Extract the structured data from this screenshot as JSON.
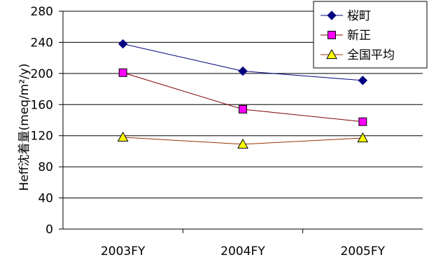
{
  "chart_data": {
    "type": "line",
    "categories": [
      "2003FY",
      "2004FY",
      "2005FY"
    ],
    "ylabel": "Heff沈着量(meq/m²/y)",
    "ylim": [
      0,
      280
    ],
    "yticks": [
      0,
      40,
      80,
      120,
      160,
      200,
      240,
      280
    ],
    "grid": true,
    "legend_position": "top-right",
    "series": [
      {
        "name": "桜町",
        "values": [
          238,
          203,
          191
        ],
        "color": "#000080",
        "marker": "diamond",
        "line_color": "#000080"
      },
      {
        "name": "新正",
        "values": [
          201,
          154,
          138
        ],
        "color": "#ff00ff",
        "marker": "square",
        "line_color": "#800000"
      },
      {
        "name": "全国平均",
        "values": [
          118,
          109,
          117
        ],
        "color": "#ffff00",
        "marker": "triangle",
        "line_color": "#993300"
      }
    ]
  }
}
